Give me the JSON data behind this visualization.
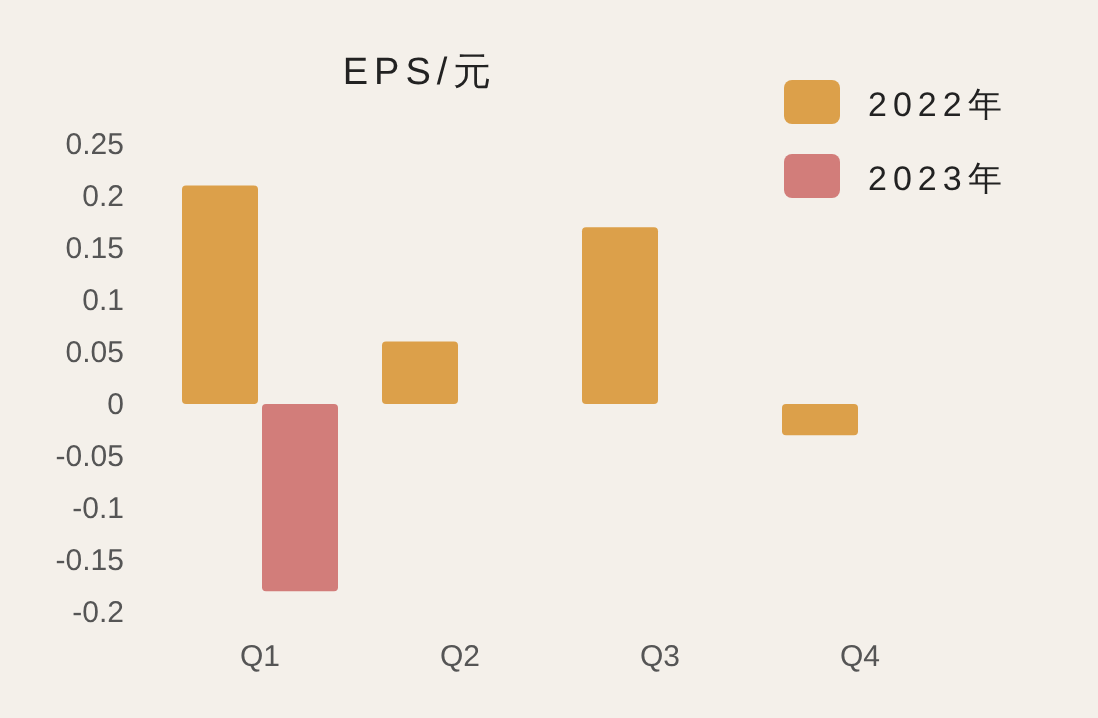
{
  "chart_data": {
    "type": "bar",
    "title": "EPS/元",
    "categories": [
      "Q1",
      "Q2",
      "Q3",
      "Q4"
    ],
    "series": [
      {
        "name": "2022年",
        "color": "#dca04a",
        "values": [
          0.21,
          0.06,
          0.17,
          -0.03
        ]
      },
      {
        "name": "2023年",
        "color": "#d27d7a",
        "values": [
          -0.18,
          null,
          null,
          null
        ]
      }
    ],
    "ylim": [
      -0.2,
      0.25
    ],
    "yticks": [
      0.25,
      0.2,
      0.15,
      0.1,
      0.05,
      0,
      -0.05,
      -0.1,
      -0.15,
      -0.2
    ],
    "grid": false,
    "legend": "top right"
  }
}
